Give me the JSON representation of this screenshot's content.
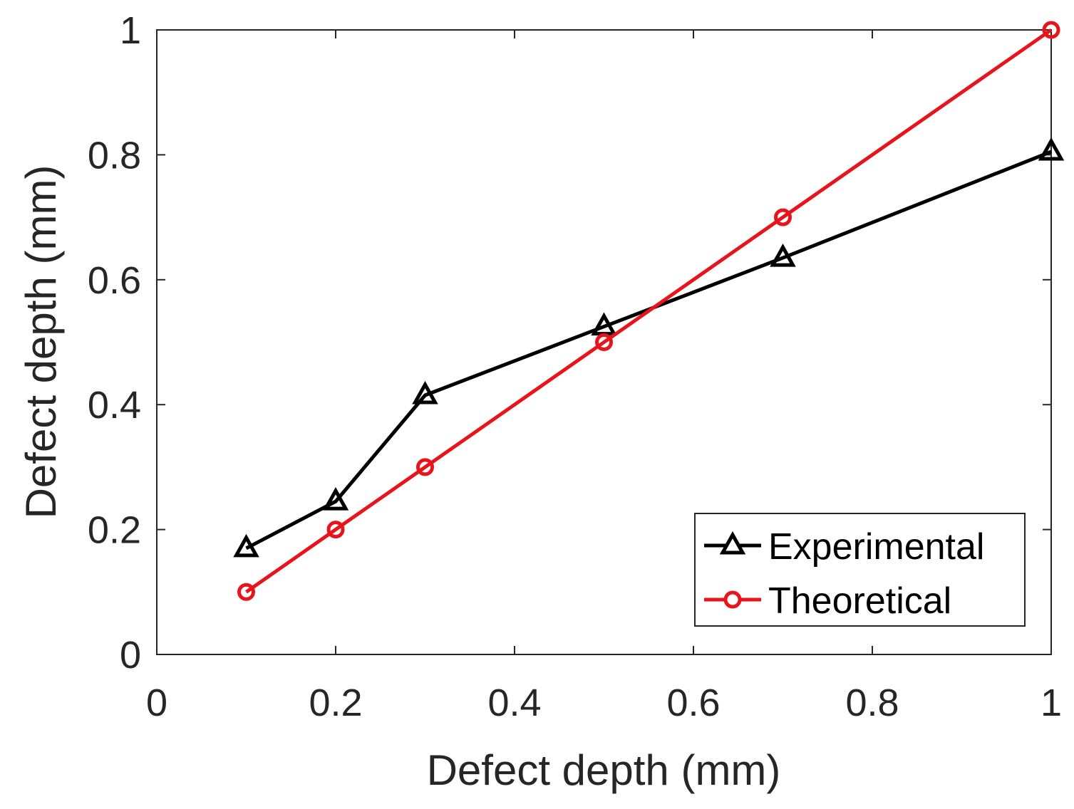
{
  "chart_data": {
    "type": "line",
    "title": "",
    "xlabel": "Defect depth (mm)",
    "ylabel": "Defect depth (mm)",
    "xlim": [
      0,
      1
    ],
    "ylim": [
      0,
      1
    ],
    "xticks": [
      0,
      0.2,
      0.4,
      0.6,
      0.8,
      1
    ],
    "yticks": [
      0,
      0.2,
      0.4,
      0.6,
      0.8,
      1
    ],
    "xtick_labels": [
      "0",
      "0.2",
      "0.4",
      "0.6",
      "0.8",
      "1"
    ],
    "ytick_labels": [
      "0",
      "0.2",
      "0.4",
      "0.6",
      "0.8",
      "1"
    ],
    "grid": false,
    "legend_position": "bottom-right",
    "series": [
      {
        "name": "Experimental",
        "color": "#000000",
        "marker": "triangle",
        "x": [
          0.1,
          0.2,
          0.3,
          0.5,
          0.7,
          1.0
        ],
        "y": [
          0.17,
          0.245,
          0.415,
          0.525,
          0.635,
          0.805
        ]
      },
      {
        "name": "Theoretical",
        "color": "#e8141b",
        "marker": "circle",
        "x": [
          0.1,
          0.2,
          0.3,
          0.5,
          0.7,
          1.0
        ],
        "y": [
          0.1,
          0.2,
          0.3,
          0.5,
          0.7,
          1.0
        ]
      }
    ]
  }
}
